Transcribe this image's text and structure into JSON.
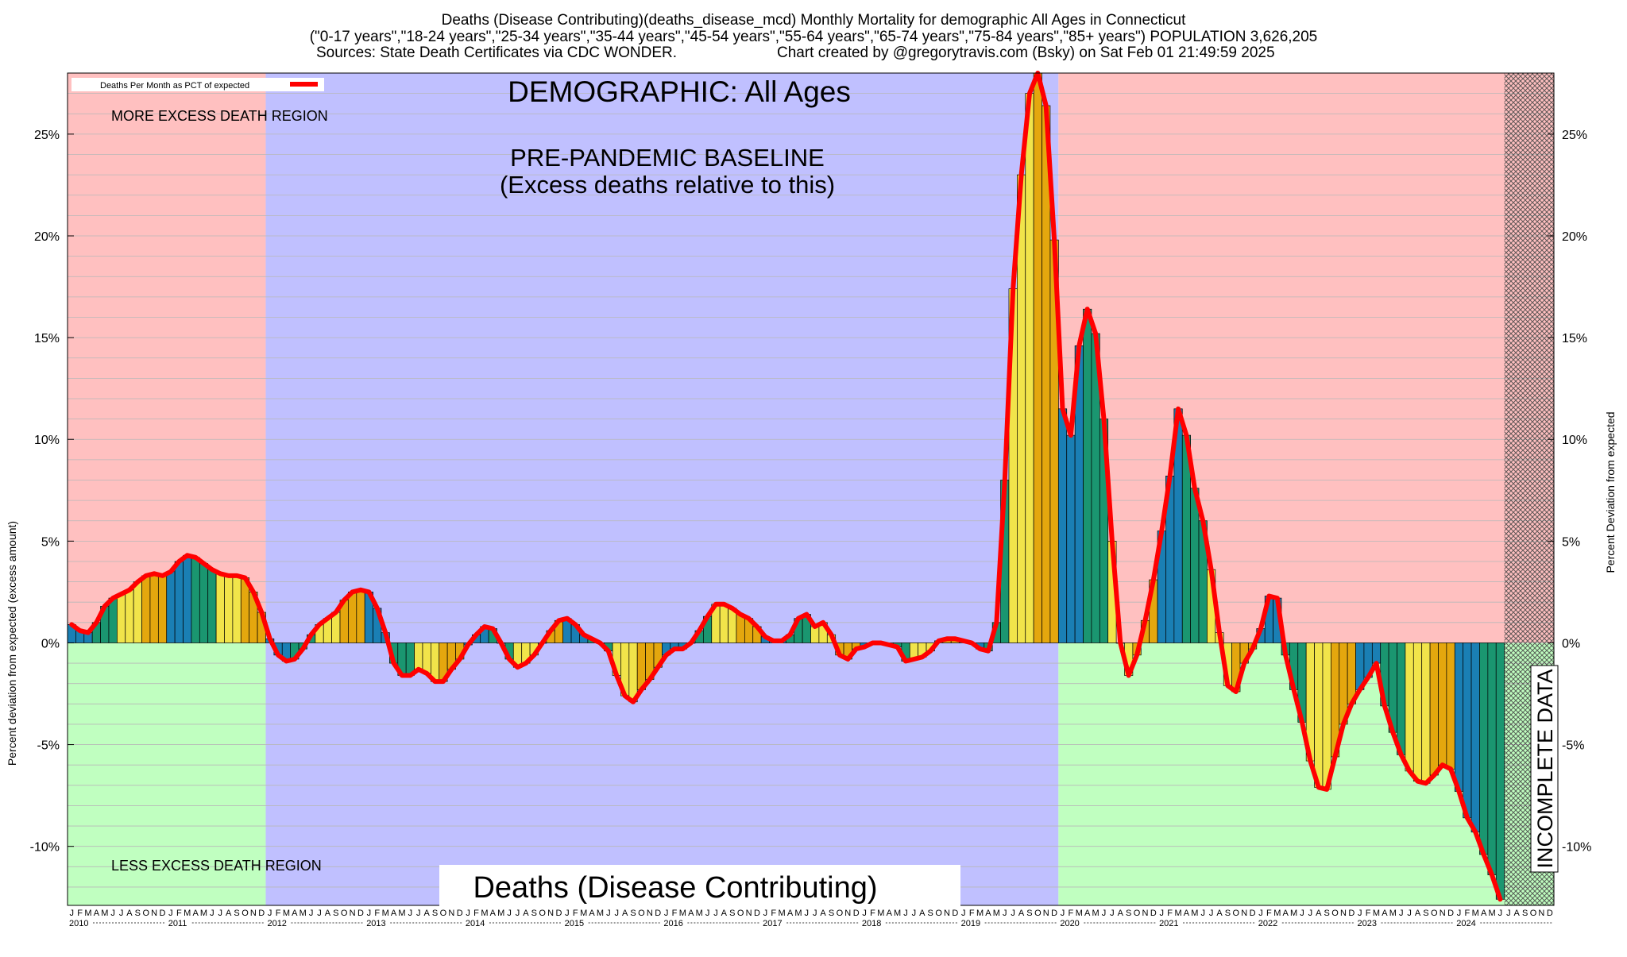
{
  "header": {
    "line1": "Deaths (Disease Contributing)(deaths_disease_mcd) Monthly Mortality for demographic All Ages in Connecticut",
    "line2": "(\"0-17 years\",\"18-24 years\",\"25-34 years\",\"35-44 years\",\"45-54 years\",\"55-64 years\",\"65-74 years\",\"75-84 years\",\"85+ years\") POPULATION 3,626,205",
    "line3_left": "Sources: State Death Certificates via CDC WONDER.",
    "line3_right": "Chart created by @gregorytravis.com (Bsky) on Sat Feb 01 21:49:59 2025"
  },
  "annotations": {
    "demographic": "DEMOGRAPHIC: All Ages",
    "baseline_line1": "PRE-PANDEMIC BASELINE",
    "baseline_line2": "(Excess deaths relative to this)",
    "more_excess": "MORE EXCESS DEATH REGION",
    "less_excess": "LESS EXCESS DEATH REGION",
    "metric": "Deaths (Disease Contributing)",
    "incomplete": "INCOMPLETE DATA"
  },
  "legend": {
    "label": "Deaths Per Month as PCT of expected",
    "line_color": "#ff0000"
  },
  "colors": {
    "excess_region": "#ffc0c0",
    "less_region": "#c0ffc0",
    "baseline_region": "#c0c0ff",
    "line": "#ff0000",
    "bar_palette": [
      "#1a7fb4",
      "#1a9670",
      "#f1e44a",
      "#e4a70e"
    ]
  },
  "chart_data": {
    "type": "bar",
    "y_axis_left_label": "Percent deviation from expected (excess amount)",
    "y_axis_right_label": "Percent Deviation from expected",
    "ylim": [
      -12.9,
      28.0
    ],
    "y_ticks": [
      -10,
      -5,
      0,
      5,
      10,
      15,
      20,
      25
    ],
    "y_tick_labels": [
      "-10%",
      "-5%",
      "0%",
      "5%",
      "10%",
      "15%",
      "20%",
      "25%"
    ],
    "grid": true,
    "legend_placement": "top-left",
    "start_year": 2010,
    "years": [
      "2010",
      "2011",
      "2012",
      "2013",
      "2014",
      "2015",
      "2016",
      "2017",
      "2018",
      "2019",
      "2020",
      "2021",
      "2022",
      "2023",
      "2024"
    ],
    "month_letters": [
      "J",
      "F",
      "M",
      "A",
      "M",
      "J",
      "J",
      "A",
      "S",
      "O",
      "N",
      "D"
    ],
    "baseline_period": [
      "2012-01",
      "2019-12"
    ],
    "incomplete_period": [
      "2024-07",
      "2024-12"
    ],
    "values": [
      0.9,
      0.6,
      0.5,
      1.0,
      1.8,
      2.2,
      2.4,
      2.6,
      3.0,
      3.3,
      3.4,
      3.3,
      3.5,
      4.0,
      4.3,
      4.2,
      3.9,
      3.6,
      3.4,
      3.3,
      3.3,
      3.2,
      2.5,
      1.5,
      0.2,
      -0.6,
      -0.9,
      -0.8,
      -0.3,
      0.4,
      0.9,
      1.2,
      1.5,
      2.1,
      2.5,
      2.6,
      2.5,
      1.7,
      0.5,
      -1.0,
      -1.6,
      -1.6,
      -1.3,
      -1.5,
      -1.9,
      -1.9,
      -1.3,
      -0.8,
      -0.1,
      0.4,
      0.8,
      0.7,
      0.0,
      -0.8,
      -1.2,
      -1.0,
      -0.6,
      0.0,
      0.6,
      1.1,
      1.2,
      0.9,
      0.4,
      0.2,
      0.0,
      -0.4,
      -1.6,
      -2.6,
      -2.9,
      -2.3,
      -1.8,
      -1.2,
      -0.6,
      -0.3,
      -0.3,
      0.0,
      0.6,
      1.3,
      1.9,
      1.9,
      1.7,
      1.4,
      1.2,
      0.8,
      0.3,
      0.1,
      0.1,
      0.4,
      1.2,
      1.4,
      0.8,
      1.0,
      0.4,
      -0.6,
      -0.8,
      -0.3,
      -0.2,
      0.0,
      0.0,
      -0.1,
      -0.2,
      -0.9,
      -0.8,
      -0.7,
      -0.4,
      0.1,
      0.2,
      0.2,
      0.1,
      0.0,
      -0.3,
      -0.4,
      1.0,
      8.0,
      17.4,
      23.0,
      27.0,
      28.0,
      26.4,
      19.8,
      11.5,
      10.2,
      14.6,
      16.4,
      15.2,
      11.0,
      5.0,
      0.0,
      -1.6,
      -0.6,
      1.1,
      3.1,
      5.5,
      8.2,
      11.5,
      10.2,
      7.6,
      6.0,
      3.6,
      0.5,
      -2.1,
      -2.4,
      -1.0,
      -0.3,
      0.7,
      2.3,
      2.2,
      -0.6,
      -2.3,
      -3.9,
      -5.8,
      -7.1,
      -7.2,
      -5.6,
      -4.0,
      -3.0,
      -2.3,
      -1.7,
      -1.0,
      -3.1,
      -4.4,
      -5.5,
      -6.3,
      -6.8,
      -6.9,
      -6.5,
      -6.0,
      -6.2,
      -7.3,
      -8.6,
      -9.3,
      -10.4,
      -11.4,
      -12.6
    ]
  }
}
